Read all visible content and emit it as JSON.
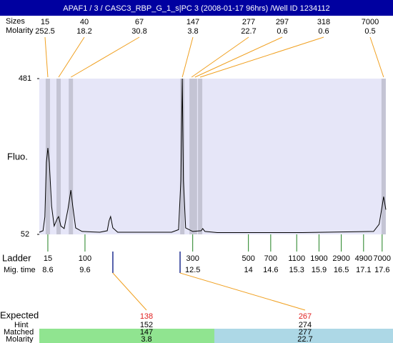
{
  "chart_data": {
    "type": "line",
    "title": "APAF1 / 3 / CASC3_RBP_G_1_s|PC 3 (2008-01-17 96hrs) /Well ID 1234112",
    "ylabel": "Fluo.",
    "color": "#000000",
    "plot_background": "#e6e6f8",
    "band_color": "#c4c4d4",
    "xlim": [
      8.37,
      17.7
    ],
    "ylim": [
      52,
      481
    ],
    "yticks": [
      52,
      481
    ],
    "x": [
      8.37,
      8.47,
      8.52,
      8.56,
      8.6,
      8.64,
      8.7,
      8.77,
      8.85,
      8.89,
      8.95,
      9.04,
      9.14,
      9.22,
      9.27,
      9.35,
      9.52,
      10.0,
      10.2,
      10.25,
      10.29,
      10.35,
      10.48,
      11.93,
      12.12,
      12.18,
      12.22,
      12.25,
      12.31,
      12.5,
      12.73,
      12.77,
      12.83,
      13.16,
      15.45,
      17.37,
      17.52,
      17.6,
      17.64,
      17.7
    ],
    "values": [
      58,
      62,
      100,
      250,
      290,
      250,
      130,
      75,
      95,
      101,
      75,
      68,
      120,
      174,
      130,
      70,
      60,
      58,
      62,
      90,
      101,
      70,
      58,
      58,
      65,
      200,
      481,
      200,
      70,
      60,
      62,
      68,
      60,
      57,
      57,
      60,
      80,
      130,
      156,
      120
    ],
    "peaks": {
      "size_label": "Sizes",
      "molarity_label": "Molarity",
      "color": "#f0a020",
      "sizes": [
        15,
        40,
        67,
        147,
        277,
        297,
        318,
        7000
      ],
      "molarity": [
        252.5,
        18.2,
        30.8,
        3.8,
        22.7,
        0.6,
        0.6,
        0.5
      ],
      "times": [
        8.6,
        8.89,
        9.22,
        12.22,
        12.47,
        12.56,
        12.7,
        17.64
      ]
    },
    "ladder": {
      "label": "Ladder",
      "time_label": "Mig. time",
      "color": "#208020",
      "sizes": [
        15,
        100,
        300,
        500,
        700,
        1100,
        1900,
        2900,
        4900,
        7000
      ],
      "times": [
        8.6,
        9.6,
        12.5,
        14,
        14.6,
        15.3,
        15.9,
        16.5,
        17.1,
        17.6
      ]
    },
    "expected": {
      "label": "Expected",
      "hint_label": "Hint",
      "matched_label": "Matched",
      "molarity_label": "Molarity",
      "marker_color": "#203090",
      "size_color": "#e02020",
      "colors": [
        "#90e490",
        "#add8e6"
      ],
      "sizes": [
        138,
        267
      ],
      "hint": [
        152,
        274
      ],
      "matched": [
        147,
        277
      ],
      "molarity": [
        3.8,
        22.7
      ],
      "times": [
        10.35,
        12.16
      ]
    }
  }
}
